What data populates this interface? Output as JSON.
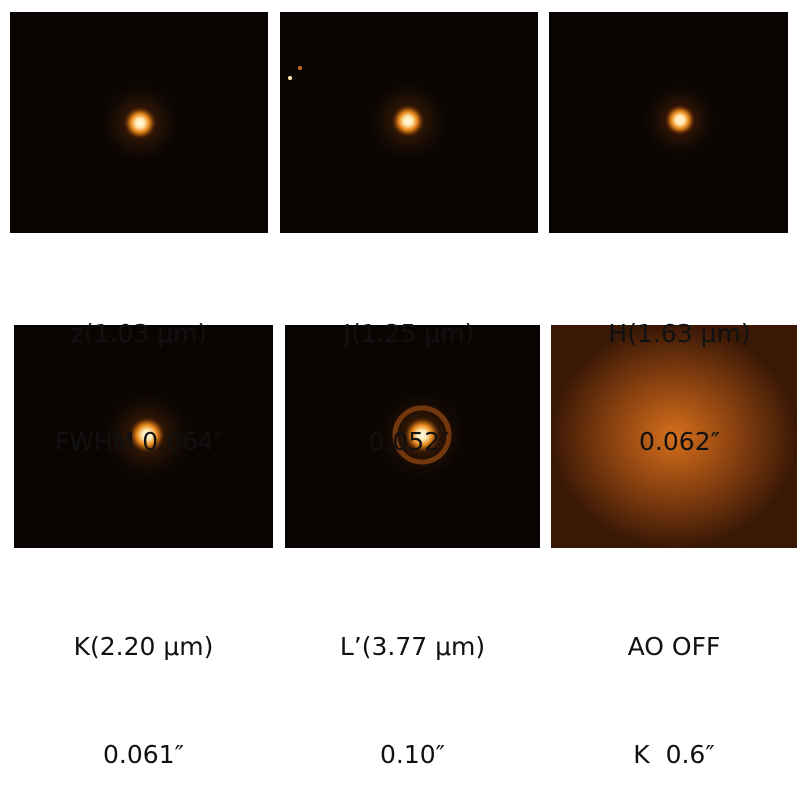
{
  "panels": [
    {
      "band": "z(1.03 μm)",
      "fwhm": "FWHM 0.064″"
    },
    {
      "band": "J(1.25 μm)",
      "fwhm": "0.052″"
    },
    {
      "band": "H(1.63 μm)",
      "fwhm": "0.062″"
    },
    {
      "band": "K(2.20 μm)",
      "fwhm": "0.061″"
    },
    {
      "band": "L’(3.77 μm)",
      "fwhm": "0.10″"
    },
    {
      "band": "AO OFF",
      "fwhm": "K  0.6″"
    }
  ]
}
